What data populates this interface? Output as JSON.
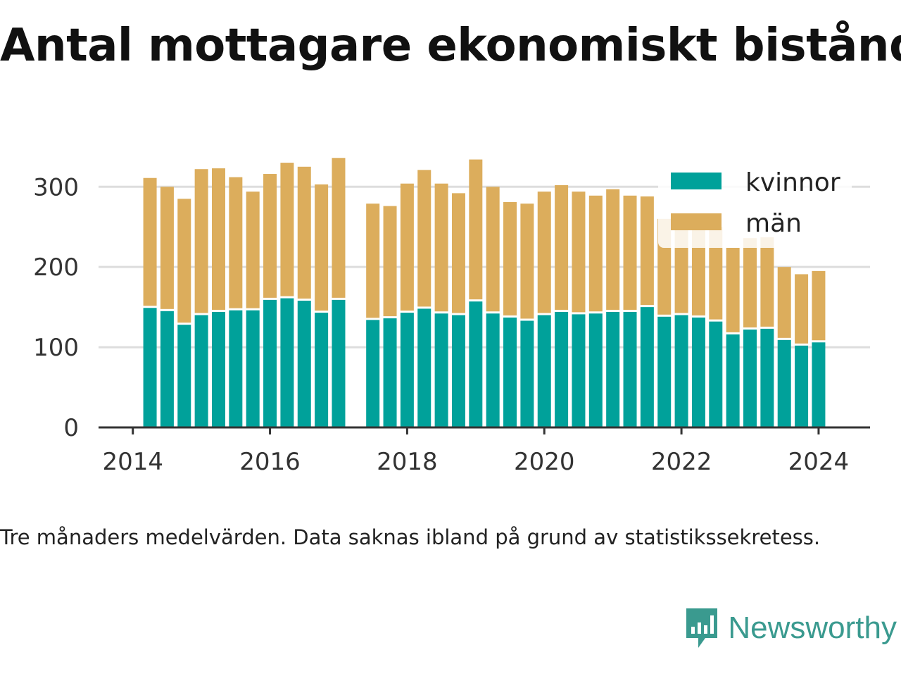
{
  "title": "Antal mottagare ekonomiskt bistånd",
  "note": "Tre månaders medelvärden. Data saknas ibland på grund av statistikssekretess.",
  "brand": "Newsworthy",
  "colors": {
    "kvinnor": "#00a19a",
    "man": "#dcad5c",
    "grid": "#dddddd",
    "axis": "#333333",
    "brand": "#3a9a8f"
  },
  "chart_data": {
    "type": "bar",
    "stacked": true,
    "x_unit": "year (quarters)",
    "x_ticks": [
      2014,
      2016,
      2018,
      2020,
      2022,
      2024
    ],
    "y_ticks": [
      0,
      100,
      200,
      300
    ],
    "xlim": [
      2013.5,
      2024.75
    ],
    "ylim": [
      0,
      345
    ],
    "grid": true,
    "legend_position": "top-right",
    "x": [
      2014.25,
      2014.5,
      2014.75,
      2015.0,
      2015.25,
      2015.5,
      2015.75,
      2016.0,
      2016.25,
      2016.5,
      2016.75,
      2017.0,
      2017.5,
      2017.75,
      2018.0,
      2018.25,
      2018.5,
      2018.75,
      2019.0,
      2019.25,
      2019.5,
      2019.75,
      2020.0,
      2020.25,
      2020.5,
      2020.75,
      2021.0,
      2021.25,
      2021.5,
      2021.75,
      2022.0,
      2022.25,
      2022.5,
      2022.75,
      2023.0,
      2023.25,
      2023.5,
      2023.75,
      2024.0
    ],
    "series": [
      {
        "name": "kvinnor",
        "values": [
          149,
          145,
          128,
          140,
          144,
          146,
          146,
          159,
          161,
          158,
          143,
          159,
          134,
          136,
          143,
          148,
          142,
          140,
          157,
          142,
          137,
          133,
          140,
          144,
          141,
          142,
          144,
          144,
          150,
          138,
          140,
          137,
          132,
          116,
          122,
          123,
          109,
          102,
          106
        ]
      },
      {
        "name": "män",
        "values": [
          162,
          155,
          157,
          182,
          179,
          166,
          148,
          157,
          169,
          167,
          160,
          177,
          145,
          140,
          161,
          173,
          162,
          152,
          177,
          158,
          144,
          146,
          154,
          158,
          153,
          147,
          153,
          145,
          138,
          122,
          125,
          124,
          118,
          108,
          114,
          114,
          91,
          89,
          89
        ]
      }
    ]
  }
}
